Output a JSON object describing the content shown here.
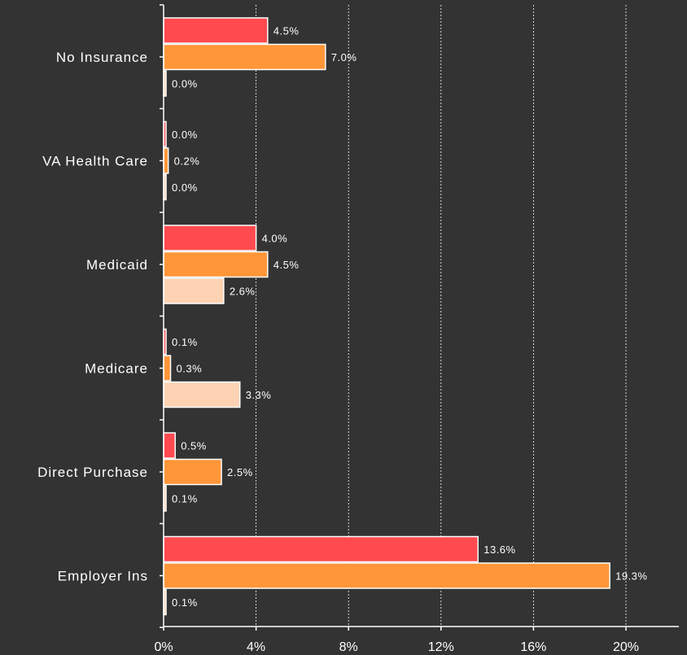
{
  "chart_data": {
    "type": "bar",
    "orientation": "horizontal",
    "categories": [
      "No Insurance",
      "VA Health Care",
      "Medicaid",
      "Medicare",
      "Direct Purchase",
      "Employer Ins"
    ],
    "series": [
      {
        "color": "#ff4b4f",
        "values": [
          4.5,
          0.0,
          4.0,
          0.1,
          0.5,
          13.6
        ],
        "labels": [
          "4.5%",
          "0.0%",
          "4.0%",
          "0.1%",
          "0.5%",
          "13.6%"
        ]
      },
      {
        "color": "#ff9638",
        "values": [
          7.0,
          0.2,
          4.5,
          0.3,
          2.5,
          19.3
        ],
        "labels": [
          "7.0%",
          "0.2%",
          "4.5%",
          "0.3%",
          "2.5%",
          "19.3%"
        ]
      },
      {
        "color": "#fdd3b3",
        "values": [
          0.0,
          0.0,
          2.6,
          3.3,
          0.1,
          0.1
        ],
        "labels": [
          "0.0%",
          "0.0%",
          "2.6%",
          "3.3%",
          "0.1%",
          "0.1%"
        ]
      }
    ],
    "x_ticks": [
      0,
      4,
      8,
      12,
      16,
      20
    ],
    "x_tick_labels": [
      "0%",
      "4%",
      "8%",
      "12%",
      "16%",
      "20%"
    ],
    "xlim": [
      0,
      22.5
    ],
    "grid": "vertical-dashed",
    "title": "",
    "xlabel": "",
    "ylabel": ""
  }
}
